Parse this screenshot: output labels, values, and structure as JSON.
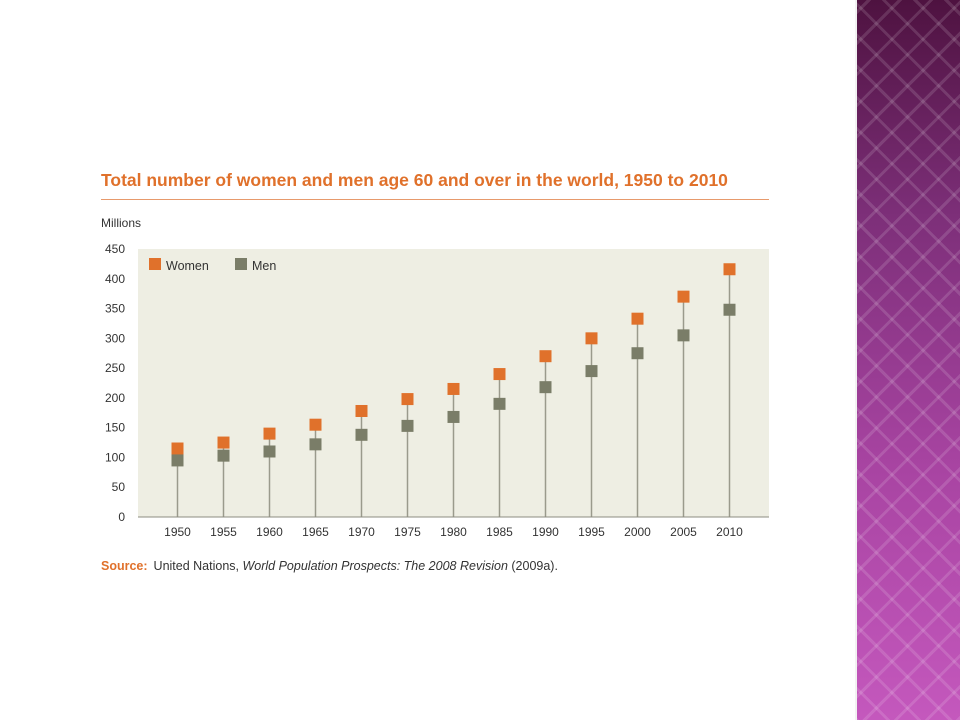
{
  "colors": {
    "women": "#e0712b",
    "men": "#7a7d68",
    "stem": "#9a9a8c",
    "plot_background": "#eeeee3",
    "title": "#e0712b",
    "side_band": "#7a2f7c"
  },
  "chart_data": {
    "type": "scatter",
    "title": "Total number of women and men age 60 and over in the world, 1950 to 2010",
    "ylabel": "Millions",
    "xlabel": "",
    "categories": [
      "1950",
      "1955",
      "1960",
      "1965",
      "1970",
      "1975",
      "1980",
      "1985",
      "1990",
      "1995",
      "2000",
      "2005",
      "2010"
    ],
    "yticks": [
      "0",
      "50",
      "100",
      "150",
      "200",
      "250",
      "300",
      "350",
      "400",
      "450"
    ],
    "ylim": [
      0,
      450
    ],
    "grid": false,
    "legend_position": "top-left",
    "series": [
      {
        "name": "Women",
        "values": [
          115,
          125,
          140,
          155,
          178,
          198,
          215,
          240,
          270,
          300,
          333,
          370,
          416
        ]
      },
      {
        "name": "Men",
        "values": [
          95,
          103,
          110,
          122,
          138,
          153,
          168,
          190,
          218,
          245,
          275,
          305,
          348
        ]
      }
    ]
  },
  "source": {
    "label": "Source:",
    "text_before": "United Nations, ",
    "publication": "World Population Prospects: The 2008 Revision",
    "text_after": " (2009a)."
  }
}
